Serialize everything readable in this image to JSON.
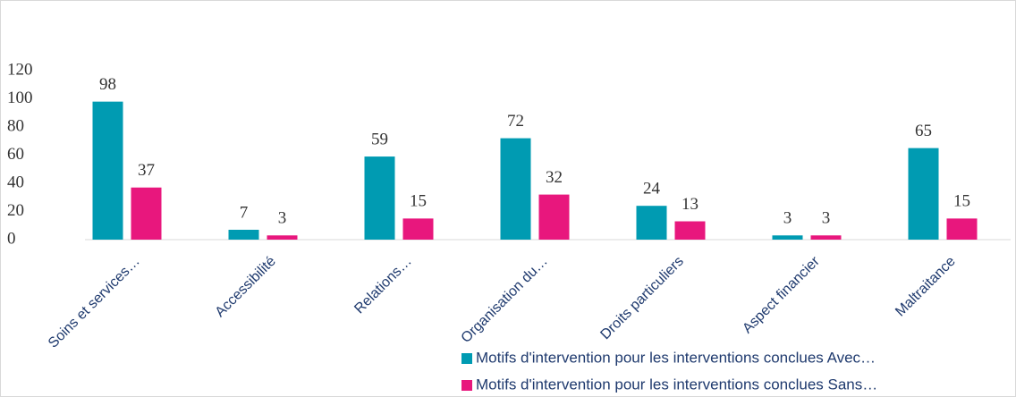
{
  "chart_data": {
    "type": "bar",
    "categories": [
      "Soins et services…",
      "Accessibilité",
      "Relations…",
      "Organisation du…",
      "Droits particuliers",
      "Aspect financier",
      "Maltraitance"
    ],
    "series": [
      {
        "name": "Motifs d'intervention pour les interventions conclues Avec…",
        "color": "#009bb2",
        "values": [
          98,
          7,
          59,
          72,
          24,
          3,
          65
        ]
      },
      {
        "name": "Motifs d'intervention pour les interventions conclues Sans…",
        "color": "#e8177d",
        "values": [
          37,
          3,
          15,
          32,
          13,
          3,
          15
        ]
      }
    ],
    "ylim": [
      0,
      120
    ],
    "yticks": [
      0,
      20,
      40,
      60,
      80,
      100,
      120
    ],
    "grid": false
  }
}
